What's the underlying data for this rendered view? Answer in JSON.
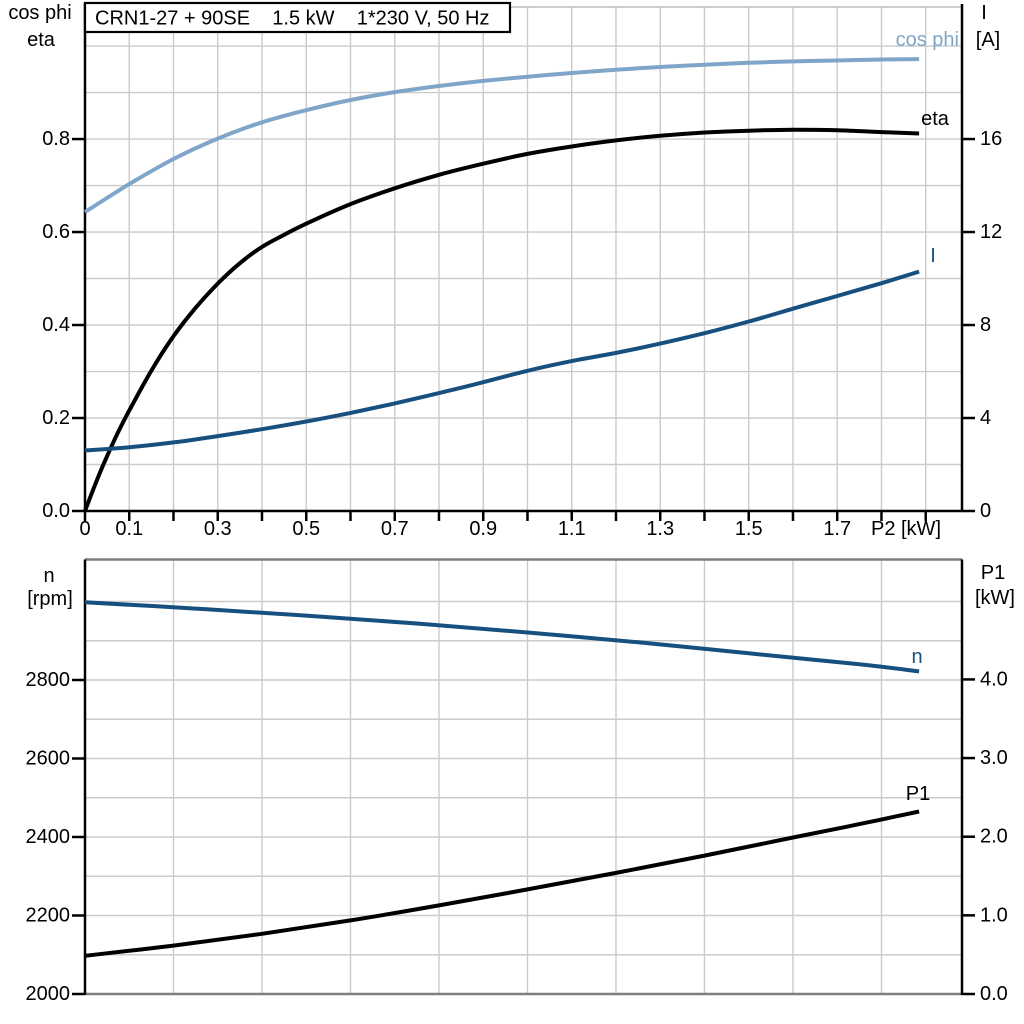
{
  "title": "CRN1-27 + 90SE    1.5 kW    1*230 V, 50 Hz",
  "colors": {
    "black": "#000000",
    "dark_blue": "#17507F",
    "light_blue": "#7FA6C9",
    "grid": "#cbcbcb",
    "frame_light": "#bdbdbd",
    "frame_dark": "#7f7f7f"
  },
  "chart_data": [
    {
      "type": "line",
      "title": "CRN1-27 + 90SE  1.5 kW  1*230 V, 50 Hz",
      "x_axis": {
        "label": "P2 [kW]",
        "range": [
          0,
          1.982
        ],
        "grid_step": 0.1,
        "tick_step": 0.1,
        "tick_labels": [
          "0",
          "0.1",
          "0.3",
          "0.5",
          "0.7",
          "0.9",
          "1.1",
          "1.3",
          "1.5",
          "1.7"
        ]
      },
      "left_axis": {
        "header": [
          "cos phi",
          "eta"
        ],
        "range": [
          0,
          1.084
        ],
        "grid_step": 0.1,
        "grid_max": 1.0,
        "tick_labels": [
          "0.0",
          "0.2",
          "0.4",
          "0.6",
          "0.8"
        ]
      },
      "right_axis": {
        "header": [
          "I",
          "[A]"
        ],
        "range": [
          0,
          21.68
        ],
        "tick_labels": [
          "0",
          "4",
          "8",
          "12",
          "16"
        ]
      },
      "series": [
        {
          "name": "cos phi",
          "axis": "left",
          "color": "light_blue",
          "points": [
            [
              0,
              0.643
            ],
            [
              0.1,
              0.703
            ],
            [
              0.2,
              0.757
            ],
            [
              0.3,
              0.801
            ],
            [
              0.4,
              0.836
            ],
            [
              0.5,
              0.862
            ],
            [
              0.6,
              0.884
            ],
            [
              0.7,
              0.901
            ],
            [
              0.8,
              0.914
            ],
            [
              0.9,
              0.925
            ],
            [
              1.0,
              0.934
            ],
            [
              1.1,
              0.942
            ],
            [
              1.2,
              0.949
            ],
            [
              1.3,
              0.955
            ],
            [
              1.4,
              0.96
            ],
            [
              1.5,
              0.964
            ],
            [
              1.6,
              0.967
            ],
            [
              1.7,
              0.969
            ],
            [
              1.8,
              0.971
            ],
            [
              1.885,
              0.972
            ]
          ]
        },
        {
          "name": "eta",
          "axis": "left",
          "color": "black",
          "points": [
            [
              0,
              0
            ],
            [
              0.025,
              0.062
            ],
            [
              0.05,
              0.118
            ],
            [
              0.075,
              0.17
            ],
            [
              0.1,
              0.216
            ],
            [
              0.15,
              0.302
            ],
            [
              0.2,
              0.376
            ],
            [
              0.25,
              0.437
            ],
            [
              0.3,
              0.489
            ],
            [
              0.35,
              0.533
            ],
            [
              0.4,
              0.568
            ],
            [
              0.45,
              0.594
            ],
            [
              0.5,
              0.618
            ],
            [
              0.6,
              0.66
            ],
            [
              0.7,
              0.694
            ],
            [
              0.8,
              0.723
            ],
            [
              0.9,
              0.747
            ],
            [
              1.0,
              0.768
            ],
            [
              1.1,
              0.784
            ],
            [
              1.2,
              0.797
            ],
            [
              1.3,
              0.807
            ],
            [
              1.4,
              0.814
            ],
            [
              1.5,
              0.818
            ],
            [
              1.6,
              0.82
            ],
            [
              1.7,
              0.819
            ],
            [
              1.8,
              0.815
            ],
            [
              1.885,
              0.812
            ]
          ]
        },
        {
          "name": "I",
          "axis": "right",
          "color": "dark_blue",
          "points": [
            [
              0,
              2.6
            ],
            [
              0.1,
              2.74
            ],
            [
              0.2,
              2.95
            ],
            [
              0.3,
              3.22
            ],
            [
              0.4,
              3.52
            ],
            [
              0.5,
              3.85
            ],
            [
              0.6,
              4.22
            ],
            [
              0.7,
              4.63
            ],
            [
              0.8,
              5.07
            ],
            [
              0.9,
              5.54
            ],
            [
              1.0,
              6.03
            ],
            [
              1.1,
              6.45
            ],
            [
              1.2,
              6.8
            ],
            [
              1.3,
              7.2
            ],
            [
              1.4,
              7.65
            ],
            [
              1.5,
              8.15
            ],
            [
              1.6,
              8.7
            ],
            [
              1.7,
              9.25
            ],
            [
              1.8,
              9.8
            ],
            [
              1.885,
              10.3
            ]
          ]
        }
      ]
    },
    {
      "type": "line",
      "x_axis": {
        "label": "",
        "range": [
          0,
          1.982
        ],
        "grid_step": 0.2,
        "tick_step": 0,
        "tick_labels": []
      },
      "left_axis": {
        "header": [
          "n",
          "[rpm]"
        ],
        "range": [
          2000,
          3107
        ],
        "grid_step": 100,
        "grid_max": 3000,
        "tick_labels": [
          "2000",
          "2200",
          "2400",
          "2600",
          "2800"
        ]
      },
      "right_axis": {
        "header": [
          "P1",
          "[kW]"
        ],
        "range": [
          0,
          5.525
        ],
        "tick_labels": [
          "0.0",
          "1.0",
          "2.0",
          "3.0",
          "4.0"
        ]
      },
      "series": [
        {
          "name": "n",
          "axis": "left",
          "color": "dark_blue",
          "points": [
            [
              0,
              2998
            ],
            [
              0.25,
              2982
            ],
            [
              0.5,
              2964
            ],
            [
              0.75,
              2944
            ],
            [
              1.0,
              2921
            ],
            [
              1.25,
              2896
            ],
            [
              1.5,
              2868
            ],
            [
              1.75,
              2840
            ],
            [
              1.885,
              2822
            ]
          ]
        },
        {
          "name": "P1",
          "axis": "right",
          "color": "black",
          "points": [
            [
              0,
              0.486
            ],
            [
              0.2,
              0.616
            ],
            [
              0.4,
              0.766
            ],
            [
              0.6,
              0.936
            ],
            [
              0.8,
              1.126
            ],
            [
              1.0,
              1.33
            ],
            [
              1.2,
              1.54
            ],
            [
              1.4,
              1.76
            ],
            [
              1.6,
              1.99
            ],
            [
              1.75,
              2.16
            ],
            [
              1.885,
              2.32
            ]
          ]
        }
      ]
    }
  ]
}
